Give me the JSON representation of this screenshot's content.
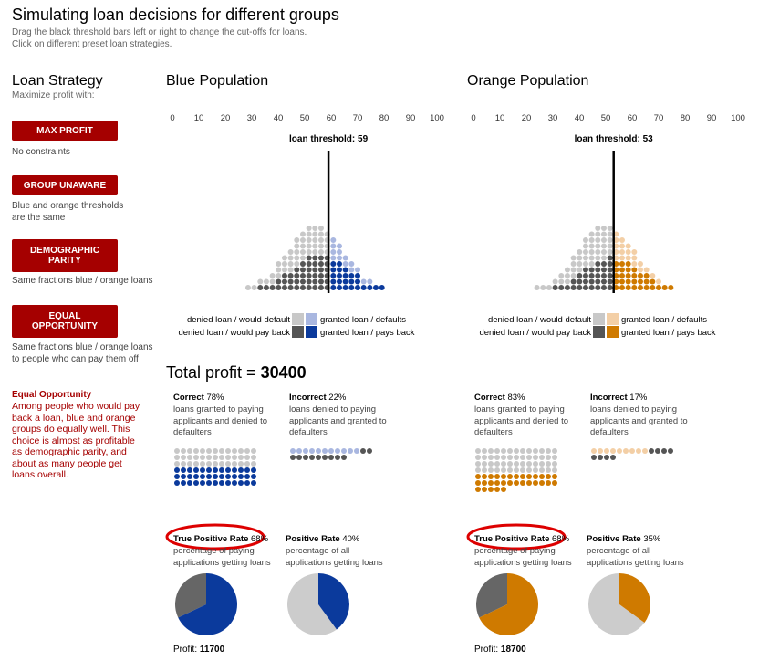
{
  "header": {
    "title": "Simulating loan decisions for different groups",
    "subtitle": [
      "Drag the black threshold bars left or right to change the cut-offs for loans.",
      "Click on different preset loan strategies."
    ]
  },
  "strategy": {
    "title": "Loan Strategy",
    "subtitle": "Maximize profit with:",
    "options": [
      {
        "button": "MAX PROFIT",
        "description": "No constraints"
      },
      {
        "button": "GROUP UNAWARE",
        "description": "Blue and orange thresholds are the same"
      },
      {
        "button": "DEMOGRAPHIC PARITY",
        "description": "Same fractions blue / orange loans"
      },
      {
        "button": "EQUAL OPPORTUNITY",
        "description": "Same fractions blue / orange loans to people who can pay them off"
      }
    ],
    "explanation": {
      "title": "Equal Opportunity",
      "text": "Among people who would pay back a loan, blue and orange groups do equally well. This choice is almost as profitable as demographic parity, and about as many people get loans overall."
    }
  },
  "axis_ticks": [
    0,
    10,
    20,
    30,
    40,
    50,
    60,
    70,
    80,
    90,
    100
  ],
  "threshold_label": "loan threshold:",
  "legend": {
    "denied_default": "denied loan / would default",
    "denied_payback": "denied loan / would pay back",
    "granted_default": "granted loan / defaults",
    "granted_payback": "granted loan / pays back"
  },
  "total_profit": {
    "label": "Total profit =",
    "value": 30400
  },
  "metric_labels": {
    "correct": "Correct",
    "correct_desc": "loans granted to paying applicants and denied to defaulters",
    "incorrect": "Incorrect",
    "incorrect_desc": "loans denied to paying applicants and granted to defaulters",
    "tpr": "True Positive Rate",
    "tpr_desc": "percentage of paying applications getting loans",
    "positive_rate": "Positive Rate",
    "positive_rate_desc": "percentage of all applications getting loans",
    "profit": "Profit:"
  },
  "groups": [
    {
      "title": "Blue Population",
      "color": "#0b3a9c",
      "light": "#a9b7e0",
      "threshold": 59,
      "correct": {
        "value": 78,
        "label": "78%"
      },
      "incorrect": {
        "value": 22,
        "label": "22%"
      },
      "tpr": {
        "value": 68,
        "label": "68%"
      },
      "positive_rate": {
        "value": 40,
        "label": "40%"
      },
      "profit": 11700
    },
    {
      "title": "Orange Population",
      "color": "#cf7a00",
      "light": "#f3cfa6",
      "threshold": 53,
      "correct": {
        "value": 83,
        "label": "83%"
      },
      "incorrect": {
        "value": 17,
        "label": "17%"
      },
      "tpr": {
        "value": 68,
        "label": "68%"
      },
      "positive_rate": {
        "value": 35,
        "label": "35%"
      },
      "profit": 18700
    }
  ]
}
